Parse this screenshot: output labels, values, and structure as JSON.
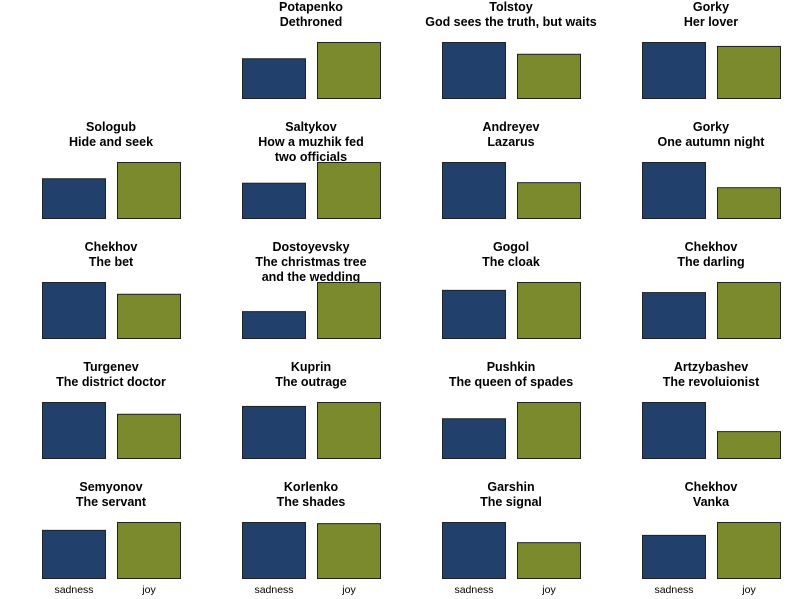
{
  "chart_data": {
    "type": "bar",
    "layout": "small-multiples",
    "categories": [
      "sadness",
      "joy"
    ],
    "colors": {
      "sadness": "#21406b",
      "joy": "#7b8a2d"
    },
    "ylim": [
      0,
      1
    ],
    "grid": false,
    "panels": [
      {
        "title": [
          "Potapenko",
          "Dethroned"
        ],
        "values": [
          0.71,
          1.0
        ]
      },
      {
        "title": [
          "Tolstoy",
          "God sees the truth, but waits"
        ],
        "values": [
          1.0,
          0.79
        ]
      },
      {
        "title": [
          "Gorky",
          "Her lover"
        ],
        "values": [
          1.0,
          0.93
        ]
      },
      {
        "title": [
          "Sologub",
          "Hide and seek"
        ],
        "values": [
          0.71,
          1.0
        ]
      },
      {
        "title": [
          "Saltykov",
          "How a muzhik fed",
          "two officials"
        ],
        "values": [
          0.63,
          1.0
        ]
      },
      {
        "title": [
          "Andreyev",
          "Lazarus"
        ],
        "values": [
          1.0,
          0.64
        ]
      },
      {
        "title": [
          "Gorky",
          "One autumn night"
        ],
        "values": [
          1.0,
          0.55
        ]
      },
      {
        "title": [
          "Chekhov",
          "The bet"
        ],
        "values": [
          1.0,
          0.79
        ]
      },
      {
        "title": [
          "Dostoyevsky",
          "The christmas tree",
          "and the wedding"
        ],
        "values": [
          0.48,
          1.0
        ]
      },
      {
        "title": [
          "Gogol",
          "The cloak"
        ],
        "values": [
          0.86,
          1.0
        ]
      },
      {
        "title": [
          "Chekhov",
          "The darling"
        ],
        "values": [
          0.82,
          1.0
        ]
      },
      {
        "title": [
          "Turgenev",
          "The district doctor"
        ],
        "values": [
          1.0,
          0.79
        ]
      },
      {
        "title": [
          "Kuprin",
          "The outrage"
        ],
        "values": [
          0.93,
          1.0
        ]
      },
      {
        "title": [
          "Pushkin",
          "The queen of spades"
        ],
        "values": [
          0.71,
          1.0
        ]
      },
      {
        "title": [
          "Artzybashev",
          "The revoluionist"
        ],
        "values": [
          1.0,
          0.48
        ]
      },
      {
        "title": [
          "Semyonov",
          "The servant"
        ],
        "values": [
          0.86,
          1.0
        ]
      },
      {
        "title": [
          "Korlenko",
          "The shades"
        ],
        "values": [
          1.0,
          0.98
        ]
      },
      {
        "title": [
          "Garshin",
          "The signal"
        ],
        "values": [
          1.0,
          0.64
        ]
      },
      {
        "title": [
          "Chekhov",
          "Vanka"
        ],
        "values": [
          0.77,
          1.0
        ]
      }
    ]
  }
}
